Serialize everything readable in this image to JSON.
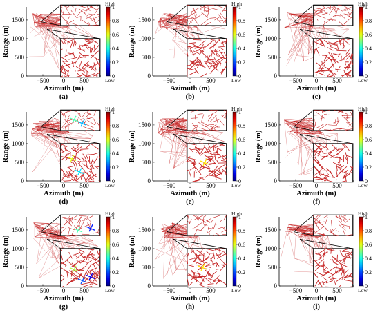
{
  "figure": {
    "axis": {
      "xlabel": "Azimuth (m)",
      "ylabel": "Range (m)",
      "x_ticks": [
        -500,
        0,
        500
      ],
      "y_ticks": [
        0,
        500,
        1000,
        1500
      ],
      "xlim": [
        -900,
        900
      ],
      "ylim": [
        0,
        1850
      ]
    },
    "colorbar": {
      "top_label": "High",
      "bottom_label": "Low",
      "ticks": [
        0,
        0.2,
        0.4,
        0.6,
        0.8,
        1
      ],
      "colormap": "jet",
      "range": [
        0,
        1
      ]
    },
    "colors": {
      "network": "#c62828",
      "frame": "#000000"
    }
  },
  "chart_data": [
    {
      "type": "network",
      "label": "(a)",
      "anomalies": []
    },
    {
      "type": "network",
      "label": "(b)",
      "anomalies": []
    },
    {
      "type": "network",
      "label": "(c)",
      "anomalies": []
    },
    {
      "type": "network",
      "label": "(d)",
      "anomalies": [
        {
          "x": 250,
          "y": 1650,
          "value": 0.45
        },
        {
          "x": 450,
          "y": 1550,
          "value": 0.3
        },
        {
          "x": 380,
          "y": 250,
          "value": 0.35
        },
        {
          "x": 200,
          "y": 600,
          "value": 0.6
        }
      ]
    },
    {
      "type": "network",
      "label": "(e)",
      "anomalies": [
        {
          "x": 350,
          "y": 500,
          "value": 0.65
        }
      ]
    },
    {
      "type": "network",
      "label": "(f)",
      "anomalies": []
    },
    {
      "type": "network",
      "label": "(g)",
      "anomalies": [
        {
          "x": 650,
          "y": 1550,
          "value": 0.15
        },
        {
          "x": 350,
          "y": 1500,
          "value": 0.45
        },
        {
          "x": 450,
          "y": 150,
          "value": 0.2
        },
        {
          "x": 250,
          "y": 450,
          "value": 0.55
        },
        {
          "x": 650,
          "y": 250,
          "value": 0.12
        }
      ]
    },
    {
      "type": "network",
      "label": "(h)",
      "anomalies": [
        {
          "x": 300,
          "y": 500,
          "value": 0.65
        }
      ]
    },
    {
      "type": "network",
      "label": "(i)",
      "anomalies": []
    }
  ]
}
